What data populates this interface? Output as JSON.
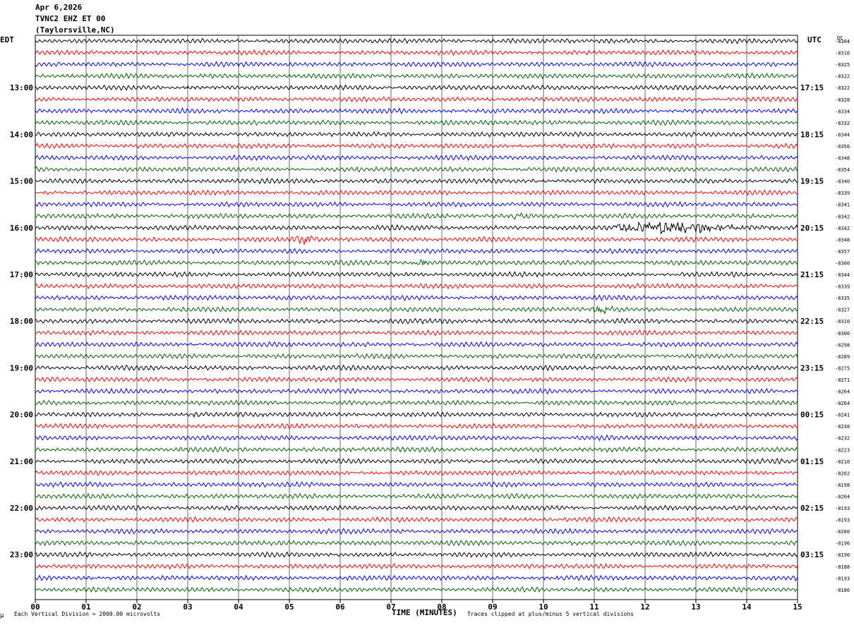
{
  "header": {
    "date": "Apr 6,2026",
    "station": "TVNC2 EHZ ET 00",
    "location": "(Taylorsville,NC)"
  },
  "left_timezone": "EDT",
  "right_timezone": "UTC",
  "dc_label": "DC",
  "footer": {
    "scale_note": "Each Vertical Division = 2000.00 microvolts",
    "clip_note": "Traces clipped at plus/minus 5 vertical divisions",
    "corner_mark": "μ"
  },
  "colors": {
    "trace_cycle": [
      "#000000",
      "#ff0000",
      "#0000ff",
      "#006400"
    ],
    "grid": "#000000"
  },
  "chart_data": {
    "type": "line",
    "title": "",
    "xlabel": "TIME (MINUTES)",
    "ylabel": "",
    "xlim": [
      0,
      15
    ],
    "x_ticks": [
      "00",
      "01",
      "02",
      "03",
      "04",
      "05",
      "06",
      "07",
      "08",
      "09",
      "10",
      "11",
      "12",
      "13",
      "14",
      "15"
    ],
    "grid": true,
    "minutes_per_line": 15,
    "left_hour_labels": [
      "13:00",
      "14:00",
      "15:00",
      "16:00",
      "17:00",
      "18:00",
      "19:00",
      "20:00",
      "21:00",
      "22:00",
      "23:00"
    ],
    "right_hour_labels": [
      "17:15",
      "18:15",
      "19:15",
      "20:15",
      "21:15",
      "22:15",
      "23:15",
      "00:15",
      "01:15",
      "02:15",
      "03:15"
    ],
    "dc_offsets": [
      "-8304",
      "-8310",
      "-8325",
      "-8322",
      "-8322",
      "-8328",
      "-8334",
      "-8332",
      "-8344",
      "-8356",
      "-8348",
      "-8354",
      "-8340",
      "-8339",
      "-8341",
      "-8342",
      "-8342",
      "-8348",
      "-8357",
      "-8360",
      "-8344",
      "-8339",
      "-8335",
      "-8327",
      "-8310",
      "-8300",
      "-8298",
      "-8289",
      "-8275",
      "-8271",
      "-8264",
      "-8264",
      "-8241",
      "-8238",
      "-8232",
      "-8223",
      "-8210",
      "-8202",
      "-8198",
      "-8204",
      "-8193",
      "-8193",
      "-8200",
      "-8196",
      "-8190",
      "-8188",
      "-8193",
      "-8186"
    ],
    "events": [
      {
        "trace": 15,
        "minute": 9.5,
        "amplitude": 6
      },
      {
        "trace": 16,
        "minute": 12.4,
        "amplitude": 9
      },
      {
        "trace": 17,
        "minute": 5.3,
        "amplitude": 8
      },
      {
        "trace": 19,
        "minute": 7.6,
        "amplitude": 5
      },
      {
        "trace": 23,
        "minute": 11.15,
        "amplitude": 9
      }
    ]
  }
}
